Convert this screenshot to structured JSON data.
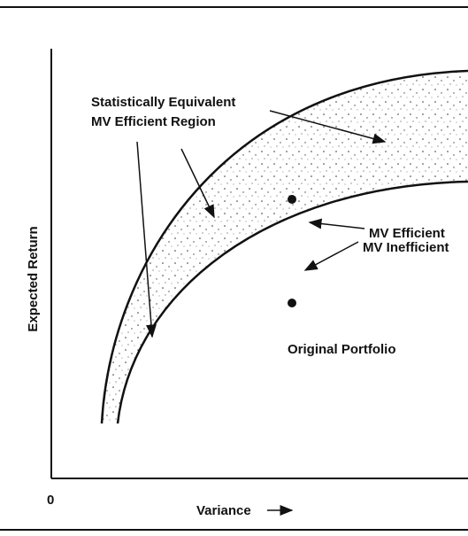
{
  "axes": {
    "y_label": "Expected Return",
    "x_label": "Variance",
    "origin": "0"
  },
  "annotations": {
    "region_line1": "Statistically Equivalent",
    "region_line2": "MV Efficient Region",
    "efficient": "MV Efficient",
    "inefficient": "MV Inefficient",
    "original": "Original Portfolio"
  }
}
